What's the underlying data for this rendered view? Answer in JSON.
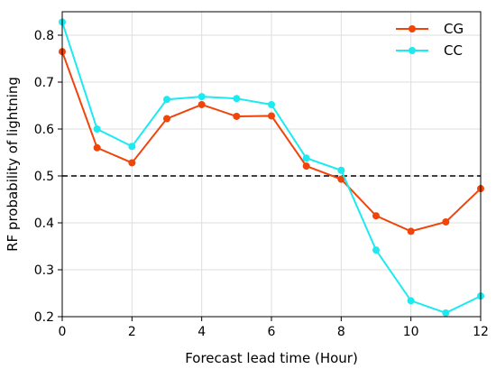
{
  "chart_data": {
    "type": "line",
    "xlabel": "Forecast lead time (Hour)",
    "ylabel": "RF probability of lightning",
    "x": [
      0,
      1,
      2,
      3,
      4,
      5,
      6,
      7,
      8,
      9,
      10,
      11,
      12
    ],
    "xlim": [
      0,
      12
    ],
    "ylim": [
      0.2,
      0.85
    ],
    "xticks": [
      0,
      2,
      4,
      6,
      8,
      10,
      12
    ],
    "yticks": [
      0.2,
      0.3,
      0.4,
      0.5,
      0.6,
      0.7,
      0.8
    ],
    "grid": true,
    "legend_position": "top-right",
    "reference_line": {
      "y": 0.5,
      "style": "dashed",
      "color": "#000000"
    },
    "series": [
      {
        "name": "CG",
        "color": "#f0440a",
        "values": [
          0.765,
          0.56,
          0.528,
          0.622,
          0.652,
          0.627,
          0.628,
          0.521,
          0.493,
          0.415,
          0.382,
          0.402,
          0.473
        ]
      },
      {
        "name": "CC",
        "color": "#1de9f0",
        "values": [
          0.828,
          0.6,
          0.563,
          0.663,
          0.669,
          0.665,
          0.652,
          0.538,
          0.512,
          0.342,
          0.234,
          0.208,
          0.244
        ]
      }
    ]
  }
}
